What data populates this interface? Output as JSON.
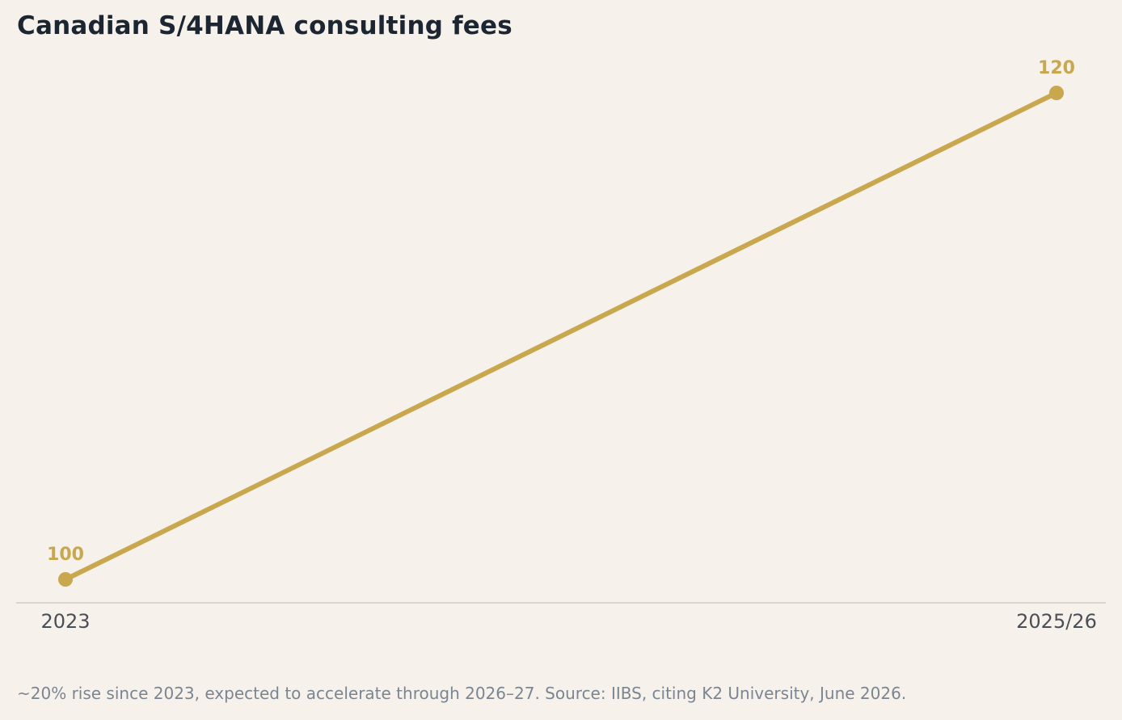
{
  "chart_data": {
    "type": "line",
    "title": "Canadian S/4HANA consulting fees",
    "categories": [
      "2023",
      "2025/26"
    ],
    "series": [
      {
        "values": [
          100,
          120
        ],
        "color": "#c8a74e"
      }
    ],
    "data_labels": [
      "100",
      "120"
    ],
    "ylim": [
      99,
      121
    ],
    "grid": false,
    "xlabel": "",
    "ylabel": "",
    "axis_color": "#d9d6cf",
    "tick_color": "#4a4f57"
  },
  "footnote": "~20% rise since 2023, expected to accelerate through 2026–27. Source: IIBS, citing K2 University, June 2026."
}
